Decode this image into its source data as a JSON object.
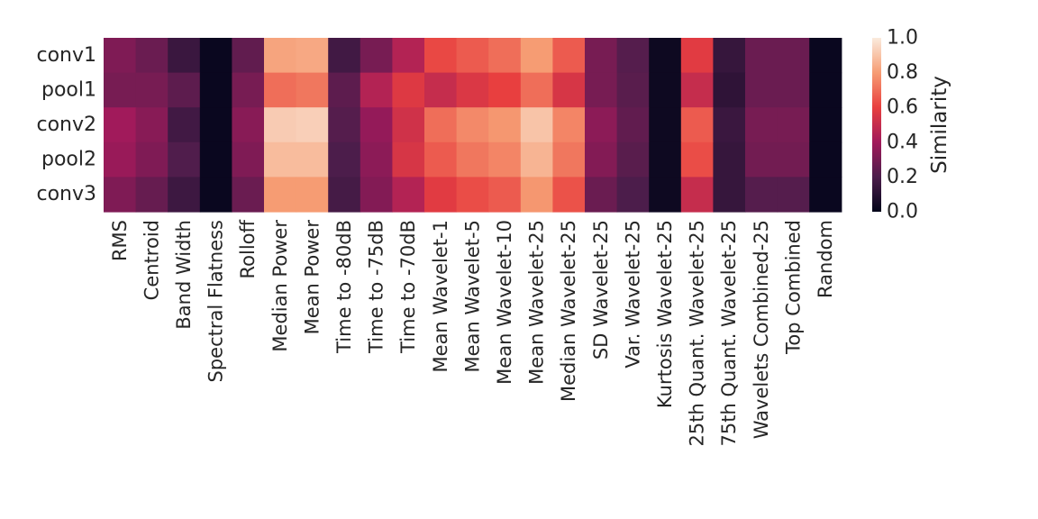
{
  "chart_data": {
    "type": "heatmap",
    "title": "",
    "xlabel": "",
    "ylabel": "",
    "rows": [
      "conv1",
      "pool1",
      "conv2",
      "pool2",
      "conv3"
    ],
    "columns": [
      "RMS",
      "Centroid",
      "Band Width",
      "Spectral Flatness",
      "Rolloff",
      "Median Power",
      "Mean Power",
      "Time to -80dB",
      "Time to -75dB",
      "Time to -70dB",
      "Mean Wavelet-1",
      "Mean Wavelet-5",
      "Mean Wavelet-10",
      "Mean Wavelet-25",
      "Median Wavelet-25",
      "SD Wavelet-25",
      "Var. Wavelet-25",
      "Kurtosis Wavelet-25",
      "25th Quant. Wavelet-25",
      "75th Quant. Wavelet-25",
      "Wavelets Combined-25",
      "Top Combined",
      "Random"
    ],
    "values": [
      [
        0.32,
        0.27,
        0.15,
        0.02,
        0.25,
        0.82,
        0.83,
        0.17,
        0.3,
        0.45,
        0.62,
        0.66,
        0.7,
        0.8,
        0.66,
        0.3,
        0.22,
        0.03,
        0.58,
        0.14,
        0.27,
        0.27,
        0.02
      ],
      [
        0.3,
        0.3,
        0.24,
        0.02,
        0.3,
        0.7,
        0.72,
        0.24,
        0.45,
        0.57,
        0.5,
        0.56,
        0.6,
        0.7,
        0.55,
        0.3,
        0.23,
        0.03,
        0.5,
        0.12,
        0.27,
        0.27,
        0.02
      ],
      [
        0.4,
        0.34,
        0.17,
        0.02,
        0.34,
        0.92,
        0.93,
        0.22,
        0.37,
        0.53,
        0.7,
        0.76,
        0.79,
        0.9,
        0.75,
        0.35,
        0.25,
        0.03,
        0.66,
        0.15,
        0.3,
        0.3,
        0.02
      ],
      [
        0.38,
        0.32,
        0.21,
        0.02,
        0.32,
        0.88,
        0.88,
        0.2,
        0.35,
        0.55,
        0.66,
        0.72,
        0.75,
        0.86,
        0.72,
        0.33,
        0.23,
        0.03,
        0.63,
        0.14,
        0.29,
        0.29,
        0.02
      ],
      [
        0.32,
        0.26,
        0.16,
        0.02,
        0.27,
        0.8,
        0.8,
        0.18,
        0.33,
        0.45,
        0.58,
        0.63,
        0.66,
        0.79,
        0.64,
        0.27,
        0.2,
        0.03,
        0.5,
        0.14,
        0.22,
        0.22,
        0.02
      ]
    ],
    "colorbar": {
      "label": "Similarity",
      "range": [
        0.0,
        1.0
      ],
      "ticks": [
        "0.0",
        "0.2",
        "0.4",
        "0.6",
        "0.8",
        "1.0"
      ],
      "colormap": "rocket",
      "stops": [
        "#03051a",
        "#4c1d4b",
        "#a11a5b",
        "#e83f3f",
        "#f69c73",
        "#faebdd"
      ]
    }
  }
}
